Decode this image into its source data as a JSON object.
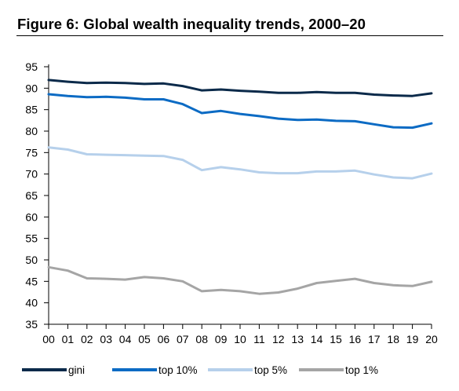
{
  "figure_title": "Figure 6: Global wealth inequality trends, 2000–20",
  "chart_data": {
    "type": "line",
    "title": "Figure 6: Global wealth inequality trends, 2000–20",
    "xlabel": "",
    "ylabel": "",
    "x": [
      "00",
      "01",
      "02",
      "03",
      "04",
      "05",
      "06",
      "07",
      "08",
      "09",
      "10",
      "11",
      "12",
      "13",
      "14",
      "15",
      "16",
      "17",
      "18",
      "19",
      "20"
    ],
    "ylim": [
      35,
      95
    ],
    "yticks": [
      35,
      40,
      45,
      50,
      55,
      60,
      65,
      70,
      75,
      80,
      85,
      90,
      95
    ],
    "grid": false,
    "legend_position": "bottom",
    "series": [
      {
        "name": "gini",
        "color": "#0b2a4a",
        "values": [
          91.9,
          91.5,
          91.2,
          91.3,
          91.2,
          91.0,
          91.1,
          90.5,
          89.5,
          89.7,
          89.4,
          89.2,
          88.9,
          88.9,
          89.1,
          88.9,
          88.9,
          88.5,
          88.3,
          88.2,
          88.8
        ]
      },
      {
        "name": "top 10%",
        "color": "#0c6bc4",
        "values": [
          88.6,
          88.2,
          87.9,
          88.0,
          87.8,
          87.4,
          87.4,
          86.3,
          84.2,
          84.7,
          84.0,
          83.5,
          82.9,
          82.6,
          82.7,
          82.4,
          82.3,
          81.6,
          80.9,
          80.8,
          81.8
        ]
      },
      {
        "name": "top 5%",
        "color": "#b6d0eb",
        "values": [
          76.2,
          75.7,
          74.6,
          74.5,
          74.4,
          74.3,
          74.2,
          73.3,
          70.9,
          71.6,
          71.1,
          70.4,
          70.2,
          70.2,
          70.6,
          70.6,
          70.8,
          69.9,
          69.2,
          69.0,
          70.1
        ]
      },
      {
        "name": "top 1%",
        "color": "#a5a5a5",
        "values": [
          48.3,
          47.5,
          45.7,
          45.6,
          45.4,
          46.0,
          45.7,
          45.0,
          42.7,
          43.0,
          42.7,
          42.1,
          42.4,
          43.3,
          44.6,
          45.1,
          45.6,
          44.6,
          44.1,
          43.9,
          44.9
        ]
      }
    ]
  }
}
